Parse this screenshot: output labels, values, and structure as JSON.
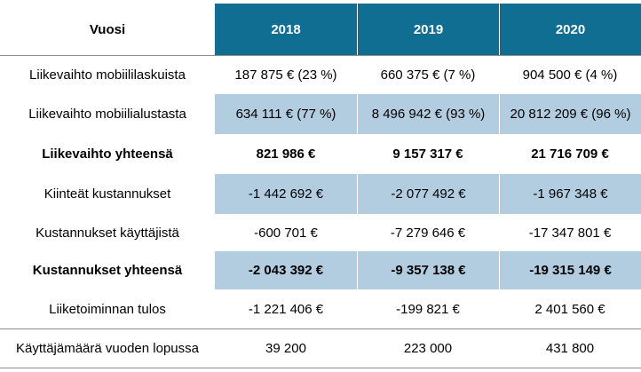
{
  "header": {
    "label": "Vuosi",
    "years": [
      "2018",
      "2019",
      "2020"
    ]
  },
  "rows": [
    {
      "label": "Liikevaihto mobiililaskuista",
      "values": [
        "187 875 € (23 %)",
        "660 375 € (7 %)",
        "904 500 € (4 %)"
      ]
    },
    {
      "label": "Liikevaihto mobiilialustasta",
      "values": [
        "634 111 € (77 %)",
        "8 496 942 € (93 %)",
        "20 812 209 € (96 %)"
      ]
    },
    {
      "label": "Liikevaihto yhteensä",
      "values": [
        "821 986 €",
        "9 157 317 €",
        "21 716 709 €"
      ]
    },
    {
      "label": "Kiinteät kustannukset",
      "values": [
        "-1 442 692 €",
        "-2 077 492 €",
        "-1 967 348 €"
      ]
    },
    {
      "label": "Kustannukset käyttäjistä",
      "values": [
        "-600 701 €",
        "-7 279 646 €",
        "-17 347 801 €"
      ]
    },
    {
      "label": "Kustannukset yhteensä",
      "values": [
        "-2 043 392 €",
        "-9 357 138 €",
        "-19 315 149 €"
      ]
    },
    {
      "label": "Liiketoiminnan tulos",
      "values": [
        "-1 221 406 €",
        "-199 821 €",
        "2 401 560 €"
      ]
    },
    {
      "label": "Käyttäjämäärä vuoden lopussa",
      "values": [
        "39 200",
        "223 000",
        "431 800"
      ]
    }
  ],
  "colors": {
    "header_fill": "#0f6e92",
    "shade_fill": "#b2cde0",
    "rule": "#8c8c8c"
  }
}
